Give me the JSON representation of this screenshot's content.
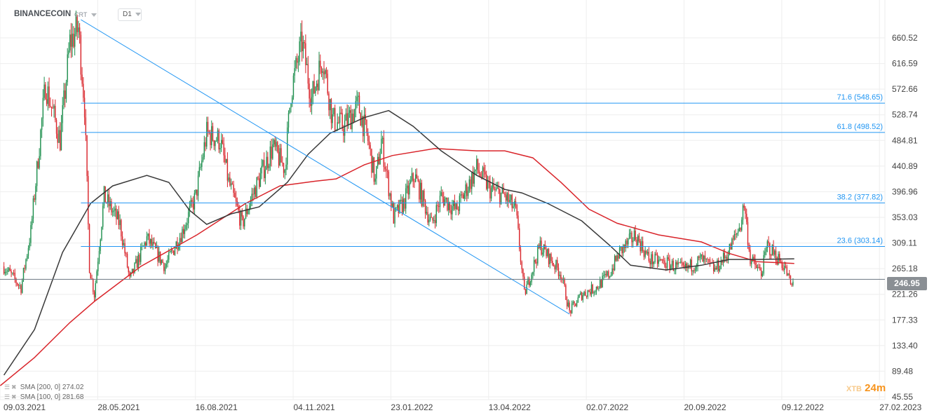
{
  "header": {
    "symbol": "BINANCECOIN",
    "chart_type": "CRT",
    "timeframe": "D1"
  },
  "legend": [
    {
      "label": "SMA [200, 0]",
      "value": "274.02",
      "color": "#d9252b"
    },
    {
      "label": "SMA [100, 0]",
      "value": "281.68",
      "color": "#3a3a3a"
    }
  ],
  "current_price": "246.95",
  "logo": {
    "text_a": "XTB",
    "text_b": "24m",
    "accent": "#f7941d"
  },
  "colors": {
    "up": "#1e8f4e",
    "down": "#d9252b",
    "sma200": "#d9252b",
    "sma100": "#3a3a3a",
    "drawing": "#2196f3",
    "grid": "#eeeeee"
  },
  "chart_data": {
    "type": "candlestick",
    "title": "",
    "ylim": [
      45.55,
      660.52
    ],
    "grid": true,
    "y_ticks": [
      "660.52",
      "616.59",
      "572.66",
      "528.74",
      "484.81",
      "440.89",
      "396.96",
      "353.03",
      "309.11",
      "265.18",
      "221.26",
      "177.33",
      "133.40",
      "89.48",
      "45.55"
    ],
    "x_ticks": [
      "09.03.2021",
      "28.05.2021",
      "16.08.2021",
      "04.11.2021",
      "23.01.2022",
      "13.04.2022",
      "02.07.2022",
      "20.09.2022",
      "09.12.2022",
      "27.02.2023"
    ],
    "price_path": [
      [
        "2021-02-23",
        269
      ],
      [
        "2021-03-09",
        233
      ],
      [
        "2021-03-17",
        329
      ],
      [
        "2021-03-29",
        581
      ],
      [
        "2021-04-10",
        485
      ],
      [
        "2021-04-18",
        653
      ],
      [
        "2021-04-25",
        677
      ],
      [
        "2021-04-30",
        545
      ],
      [
        "2021-05-04",
        269
      ],
      [
        "2021-05-08",
        221
      ],
      [
        "2021-05-16",
        389
      ],
      [
        "2021-05-29",
        341
      ],
      [
        "2021-06-06",
        245
      ],
      [
        "2021-06-20",
        317
      ],
      [
        "2021-07-05",
        269
      ],
      [
        "2021-07-19",
        329
      ],
      [
        "2021-07-30",
        389
      ],
      [
        "2021-08-08",
        497
      ],
      [
        "2021-08-19",
        485
      ],
      [
        "2021-08-26",
        413
      ],
      [
        "2021-09-06",
        341
      ],
      [
        "2021-09-14",
        389
      ],
      [
        "2021-10-01",
        473
      ],
      [
        "2021-10-11",
        437
      ],
      [
        "2021-10-16",
        569
      ],
      [
        "2021-10-25",
        653
      ],
      [
        "2021-11-02",
        557
      ],
      [
        "2021-11-11",
        629
      ],
      [
        "2021-11-19",
        521
      ],
      [
        "2021-11-28",
        509
      ],
      [
        "2021-12-10",
        545
      ],
      [
        "2021-12-18",
        485
      ],
      [
        "2021-12-24",
        413
      ],
      [
        "2021-12-29",
        485
      ],
      [
        "2022-01-08",
        353
      ],
      [
        "2022-01-16",
        377
      ],
      [
        "2022-01-25",
        425
      ],
      [
        "2022-02-08",
        341
      ],
      [
        "2022-02-16",
        389
      ],
      [
        "2022-02-28",
        365
      ],
      [
        "2022-03-17",
        437
      ],
      [
        "2022-03-28",
        401
      ],
      [
        "2022-04-09",
        389
      ],
      [
        "2022-04-18",
        365
      ],
      [
        "2022-04-25",
        221
      ],
      [
        "2022-05-08",
        305
      ],
      [
        "2022-05-25",
        257
      ],
      [
        "2022-06-01",
        191
      ],
      [
        "2022-06-11",
        221
      ],
      [
        "2022-06-23",
        233
      ],
      [
        "2022-07-04",
        257
      ],
      [
        "2022-07-12",
        293
      ],
      [
        "2022-07-25",
        323
      ],
      [
        "2022-08-05",
        281
      ],
      [
        "2022-08-19",
        275
      ],
      [
        "2022-09-03",
        263
      ],
      [
        "2022-09-17",
        281
      ],
      [
        "2022-09-28",
        263
      ],
      [
        "2022-10-09",
        293
      ],
      [
        "2022-10-19",
        341
      ],
      [
        "2022-10-22",
        377
      ],
      [
        "2022-10-27",
        281
      ],
      [
        "2022-11-05",
        257
      ],
      [
        "2022-11-10",
        305
      ],
      [
        "2022-11-24",
        269
      ],
      [
        "2022-11-30",
        233
      ],
      [
        "2022-12-02",
        246.95
      ]
    ],
    "series": [
      {
        "name": "SMA [200, 0]",
        "points": [
          [
            "2021-02-20",
            64.8
          ],
          [
            "2021-03-20",
            112.9
          ],
          [
            "2021-04-18",
            172.9
          ],
          [
            "2021-05-08",
            208.9
          ],
          [
            "2021-06-15",
            268.9
          ],
          [
            "2021-07-31",
            323
          ],
          [
            "2021-09-09",
            377
          ],
          [
            "2021-10-07",
            407
          ],
          [
            "2021-11-05",
            415
          ],
          [
            "2021-11-22",
            419
          ],
          [
            "2021-12-15",
            443
          ],
          [
            "2022-01-07",
            459
          ],
          [
            "2022-02-11",
            471
          ],
          [
            "2022-03-17",
            467
          ],
          [
            "2022-04-09",
            467
          ],
          [
            "2022-05-02",
            455
          ],
          [
            "2022-05-25",
            413
          ],
          [
            "2022-06-17",
            367
          ],
          [
            "2022-07-10",
            343
          ],
          [
            "2022-08-13",
            323
          ],
          [
            "2022-09-17",
            311
          ],
          [
            "2022-10-10",
            291
          ],
          [
            "2022-11-02",
            277
          ],
          [
            "2022-12-02",
            274
          ]
        ]
      },
      {
        "name": "SMA [100, 0]",
        "points": [
          [
            "2021-02-23",
            82.8
          ],
          [
            "2021-03-20",
            160.9
          ],
          [
            "2021-04-12",
            293
          ],
          [
            "2021-05-05",
            377
          ],
          [
            "2021-05-23",
            407
          ],
          [
            "2021-06-20",
            425
          ],
          [
            "2021-07-08",
            413
          ],
          [
            "2021-07-25",
            365
          ],
          [
            "2021-08-08",
            341
          ],
          [
            "2021-08-28",
            359
          ],
          [
            "2021-09-20",
            371
          ],
          [
            "2021-10-13",
            413
          ],
          [
            "2021-10-30",
            461
          ],
          [
            "2021-11-17",
            497
          ],
          [
            "2021-12-15",
            524
          ],
          [
            "2022-01-04",
            536
          ],
          [
            "2022-01-24",
            509
          ],
          [
            "2022-02-16",
            467
          ],
          [
            "2022-03-17",
            425
          ],
          [
            "2022-04-09",
            401
          ],
          [
            "2022-04-23",
            395
          ],
          [
            "2022-05-14",
            377
          ],
          [
            "2022-06-11",
            347
          ],
          [
            "2022-07-04",
            305
          ],
          [
            "2022-07-21",
            271
          ],
          [
            "2022-08-19",
            263
          ],
          [
            "2022-09-17",
            271
          ],
          [
            "2022-10-10",
            281
          ],
          [
            "2022-11-02",
            281
          ],
          [
            "2022-12-02",
            282
          ]
        ]
      }
    ],
    "fibonacci": {
      "start_date": "2021-04-27",
      "levels": [
        {
          "label": "71.6 (548.65)",
          "value": 548.65
        },
        {
          "label": "61.8 (498.52)",
          "value": 498.52
        },
        {
          "label": "38.2 (377.82)",
          "value": 377.82
        },
        {
          "label": "23.6 (303.14)",
          "value": 303.14
        }
      ]
    },
    "trendline": [
      [
        "2021-04-27",
        691.7
      ],
      [
        "2022-06-01",
        187.4
      ]
    ],
    "current_price_line": 246.95
  }
}
